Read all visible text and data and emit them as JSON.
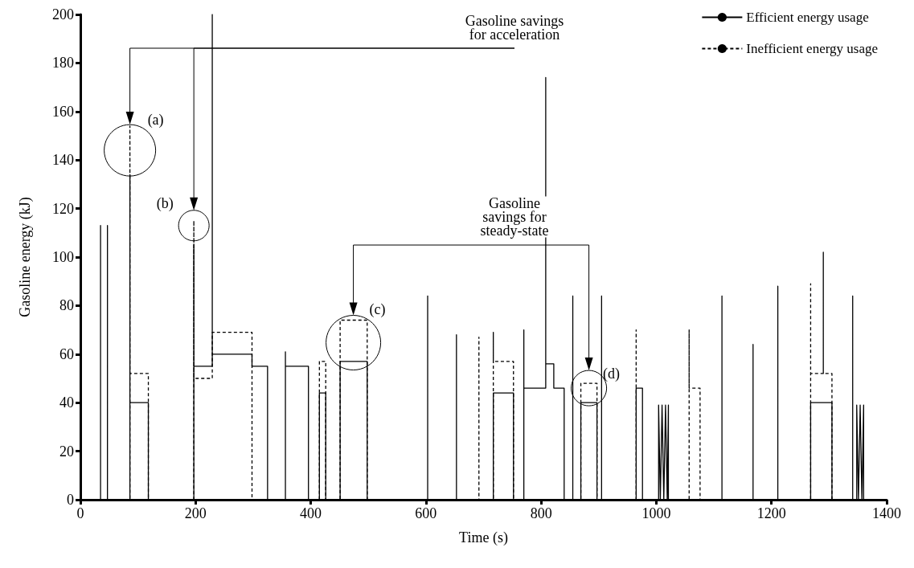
{
  "chart_data": {
    "type": "line",
    "xlabel": "Time (s)",
    "ylabel": "Gasoline energy (kJ)",
    "xlim": [
      0,
      1400
    ],
    "xticks": [
      0,
      200,
      400,
      600,
      800,
      1000,
      1200,
      1400
    ],
    "ylim": [
      0,
      200
    ],
    "yticks": [
      0,
      20,
      40,
      60,
      80,
      100,
      120,
      140,
      160,
      180,
      200
    ],
    "grid": false,
    "legend": "top right",
    "marker": "none",
    "series": [
      {
        "name": "Efficient energy usage",
        "color": "#000000",
        "line_style": "solid",
        "x": [
          0,
          35,
          35,
          35,
          47,
          47,
          47,
          86,
          86,
          86,
          118,
          118,
          197,
          197,
          197,
          229,
          229,
          229,
          298,
          298,
          325,
          325,
          356,
          356,
          356,
          396,
          396,
          415,
          415,
          426,
          426,
          451,
          451,
          498,
          498,
          603,
          603,
          603,
          653,
          653,
          653,
          717,
          717,
          752,
          752,
          770,
          770,
          770,
          808,
          808,
          808,
          822,
          822,
          840,
          840,
          855,
          855,
          855,
          869,
          869,
          897,
          897,
          905,
          905,
          905,
          965,
          965,
          976,
          976,
          1004,
          1004,
          1007,
          1010,
          1013,
          1016,
          1019,
          1021,
          1021,
          1114,
          1114,
          1114,
          1168,
          1168,
          1168,
          1211,
          1211,
          1211,
          1268,
          1268,
          1305,
          1305,
          1348,
          1348,
          1351,
          1354,
          1357,
          1360,
          1360,
          1400
        ],
        "values": [
          0,
          0,
          113,
          0,
          0,
          113,
          0,
          0,
          134,
          40,
          40,
          0,
          0,
          105,
          55,
          55,
          200,
          60,
          60,
          55,
          55,
          0,
          0,
          61,
          55,
          55,
          0,
          0,
          44,
          44,
          0,
          0,
          57,
          57,
          0,
          0,
          84,
          0,
          0,
          68,
          0,
          0,
          44,
          44,
          0,
          0,
          70,
          46,
          46,
          174,
          56,
          56,
          46,
          46,
          0,
          0,
          84,
          0,
          0,
          40,
          40,
          0,
          0,
          84,
          0,
          0,
          46,
          46,
          0,
          0,
          39,
          0,
          39,
          0,
          39,
          0,
          39,
          0,
          0,
          84,
          0,
          0,
          64,
          0,
          0,
          88,
          0,
          0,
          40,
          40,
          0,
          0,
          39,
          0,
          39,
          0,
          39,
          0,
          0
        ]
      },
      {
        "name": "Inefficient energy usage",
        "color": "#000000",
        "line_style": "dashed",
        "x": [
          0,
          86,
          86,
          86,
          118,
          118,
          197,
          197,
          197,
          229,
          229,
          298,
          298,
          415,
          415,
          426,
          426,
          451,
          451,
          498,
          498,
          692,
          692,
          692,
          717,
          717,
          717,
          752,
          752,
          869,
          869,
          897,
          897,
          965,
          965,
          965,
          1057,
          1057,
          1057,
          1076,
          1076,
          1268,
          1268,
          1268,
          1290,
          1290,
          1290,
          1305,
          1305,
          1341,
          1341,
          1341,
          1400
        ],
        "values": [
          0,
          0,
          154,
          52,
          52,
          0,
          0,
          115,
          50,
          50,
          69,
          69,
          0,
          0,
          57,
          57,
          0,
          0,
          74,
          74,
          0,
          0,
          67,
          0,
          0,
          69,
          57,
          57,
          0,
          0,
          48,
          48,
          0,
          0,
          70,
          0,
          0,
          70,
          46,
          46,
          0,
          0,
          89,
          52,
          52,
          102,
          52,
          52,
          0,
          0,
          84,
          0,
          0
        ]
      }
    ],
    "annotations": [
      "Gasoline savings\nfor acceleration",
      "Gasoline\nsavings for\nsteady-state",
      {
        "text": "(a)",
        "x": 86,
        "y": 144
      },
      {
        "text": "(b)",
        "x": 197,
        "y": 113
      },
      {
        "text": "(c)",
        "x": 474,
        "y": 74
      },
      {
        "text": "(d)",
        "x": 883,
        "y": 46
      }
    ]
  }
}
